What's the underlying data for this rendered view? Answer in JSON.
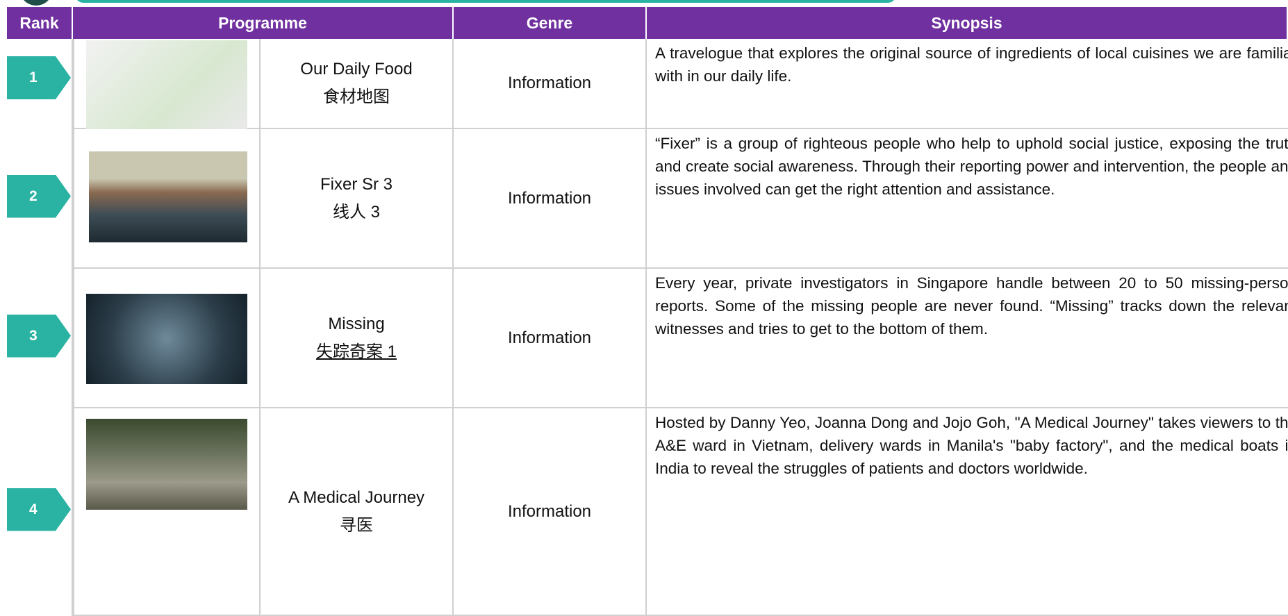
{
  "table": {
    "header": [
      "Rank",
      "Programme",
      "Genre",
      "Synopsis"
    ],
    "rows": [
      {
        "rank": "1",
        "title": "Our Daily Food",
        "title_zh": "食材地图",
        "genre": "Information",
        "synopsis": "A travelogue that explores the original source of ingredients of local cuisines we are familiar with in our daily life."
      },
      {
        "rank": "2",
        "title": "Fixer Sr 3",
        "title_zh": "线人 3",
        "genre": "Information",
        "synopsis": "“Fixer” is a group of righteous people who help to uphold social justice, exposing the truth and create social awareness. Through their reporting power and intervention, the people and issues involved can get the right attention and assistance."
      },
      {
        "rank": "3",
        "title": "Missing",
        "title_zh": "失踪奇案 1",
        "genre": "Information",
        "synopsis": "Every year, private investigators in Singapore handle between 20 to 50 missing-person reports. Some of the missing people are never found. “Missing” tracks down the relevant witnesses and tries to get to the bottom of them."
      },
      {
        "rank": "4",
        "title": "A Medical Journey",
        "title_zh": "寻医",
        "genre": "Information",
        "synopsis": "Hosted by Danny Yeo, Joanna Dong and Jojo Goh, \"A Medical Journey\" takes viewers to the A&E ward in Vietnam,  delivery wards in Manila's \"baby factory\", and the medical boats in India to reveal the struggles of patients and doctors worldwide."
      }
    ]
  }
}
